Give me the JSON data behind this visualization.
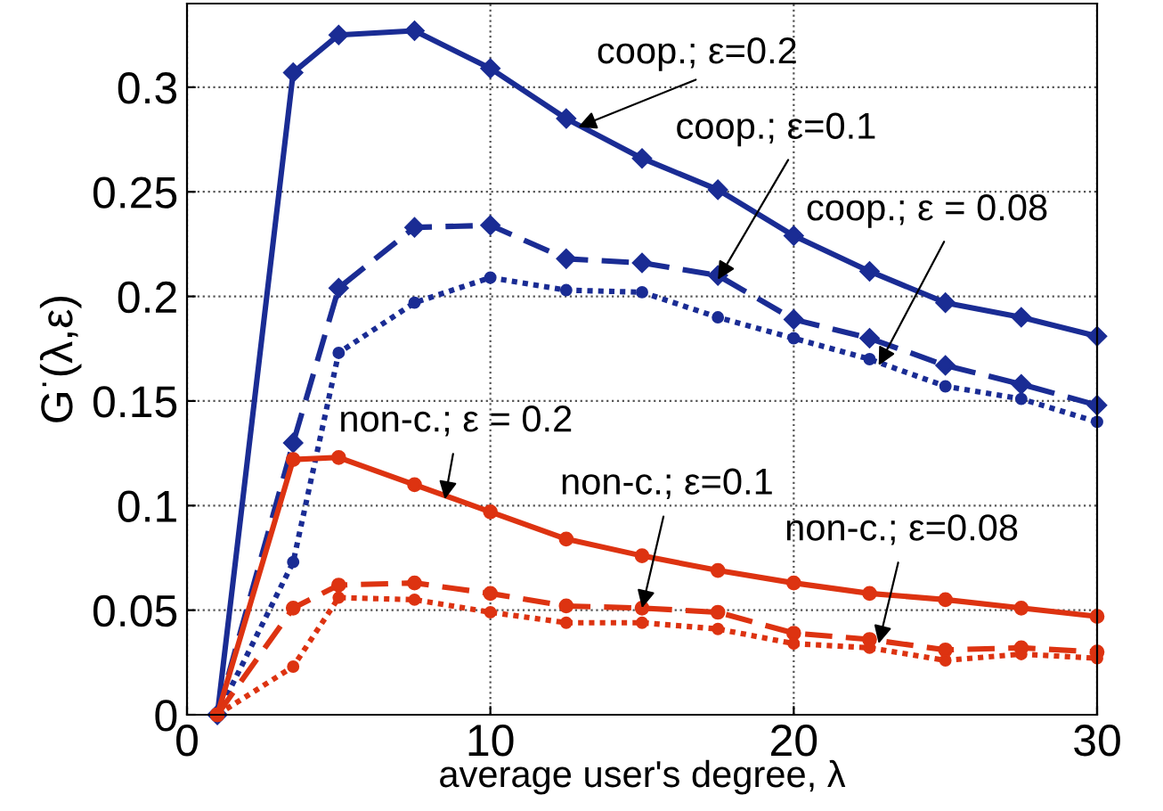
{
  "chart_data": {
    "type": "line",
    "xlabel": "average user's degree, λ",
    "ylabel": "G$^{·}$(λ,ε)",
    "x": [
      1,
      3.5,
      5,
      7.5,
      10,
      12.5,
      15,
      17.5,
      20,
      22.5,
      25,
      27.5,
      30
    ],
    "xlim": [
      0,
      30
    ],
    "ylim": [
      0,
      0.34
    ],
    "xticks": [
      0,
      10,
      20,
      30
    ],
    "yticks": [
      0,
      0.05,
      0.1,
      0.15,
      0.2,
      0.25,
      0.3
    ],
    "grid": true,
    "series": [
      {
        "color": "#1a2c94",
        "marker": "diamond",
        "line_style": "solid",
        "values": [
          0,
          0.307,
          0.325,
          0.327,
          0.309,
          0.285,
          0.266,
          0.251,
          0.229,
          0.212,
          0.197,
          0.19,
          0.181
        ]
      },
      {
        "color": "#1a2c94",
        "marker": "diamond",
        "line_style": "dashed",
        "values": [
          0,
          0.13,
          0.204,
          0.233,
          0.234,
          0.218,
          0.216,
          0.21,
          0.189,
          0.18,
          0.167,
          0.158,
          0.148
        ]
      },
      {
        "color": "#1a2c94",
        "marker": "circle",
        "line_style": "dotted",
        "values": [
          0,
          0.073,
          0.173,
          0.197,
          0.209,
          0.203,
          0.202,
          0.19,
          0.18,
          0.17,
          0.157,
          0.151,
          0.14
        ]
      },
      {
        "color": "#dd3311",
        "marker": "circle",
        "line_style": "solid",
        "values": [
          0,
          0.122,
          0.123,
          0.11,
          0.097,
          0.084,
          0.076,
          0.069,
          0.063,
          0.058,
          0.055,
          0.051,
          0.047
        ]
      },
      {
        "color": "#dd3311",
        "marker": "circle",
        "line_style": "dashed",
        "values": [
          0,
          0.051,
          0.062,
          0.063,
          0.058,
          0.052,
          0.051,
          0.049,
          0.039,
          0.036,
          0.031,
          0.032,
          0.03
        ]
      },
      {
        "color": "#dd3311",
        "marker": "circle",
        "line_style": "dotted",
        "values": [
          0,
          0.023,
          0.056,
          0.055,
          0.049,
          0.044,
          0.044,
          0.041,
          0.034,
          0.032,
          0.026,
          0.029,
          0.027
        ]
      }
    ],
    "annotations": [
      {
        "text": "coop.; ε=0.2",
        "x": 12.9,
        "y": 0.281
      },
      {
        "text": "coop.; ε=0.1",
        "x": 17.5,
        "y": 0.208
      },
      {
        "text": "coop.; ε = 0.08",
        "x": 22.8,
        "y": 0.167
      },
      {
        "text": "non-c.; ε = 0.2",
        "x": 8.5,
        "y": 0.103
      },
      {
        "text": "non-c.; ε=0.1",
        "x": 15,
        "y": 0.051
      },
      {
        "text": "non-c.; ε=0.08",
        "x": 22.8,
        "y": 0.034
      }
    ]
  }
}
